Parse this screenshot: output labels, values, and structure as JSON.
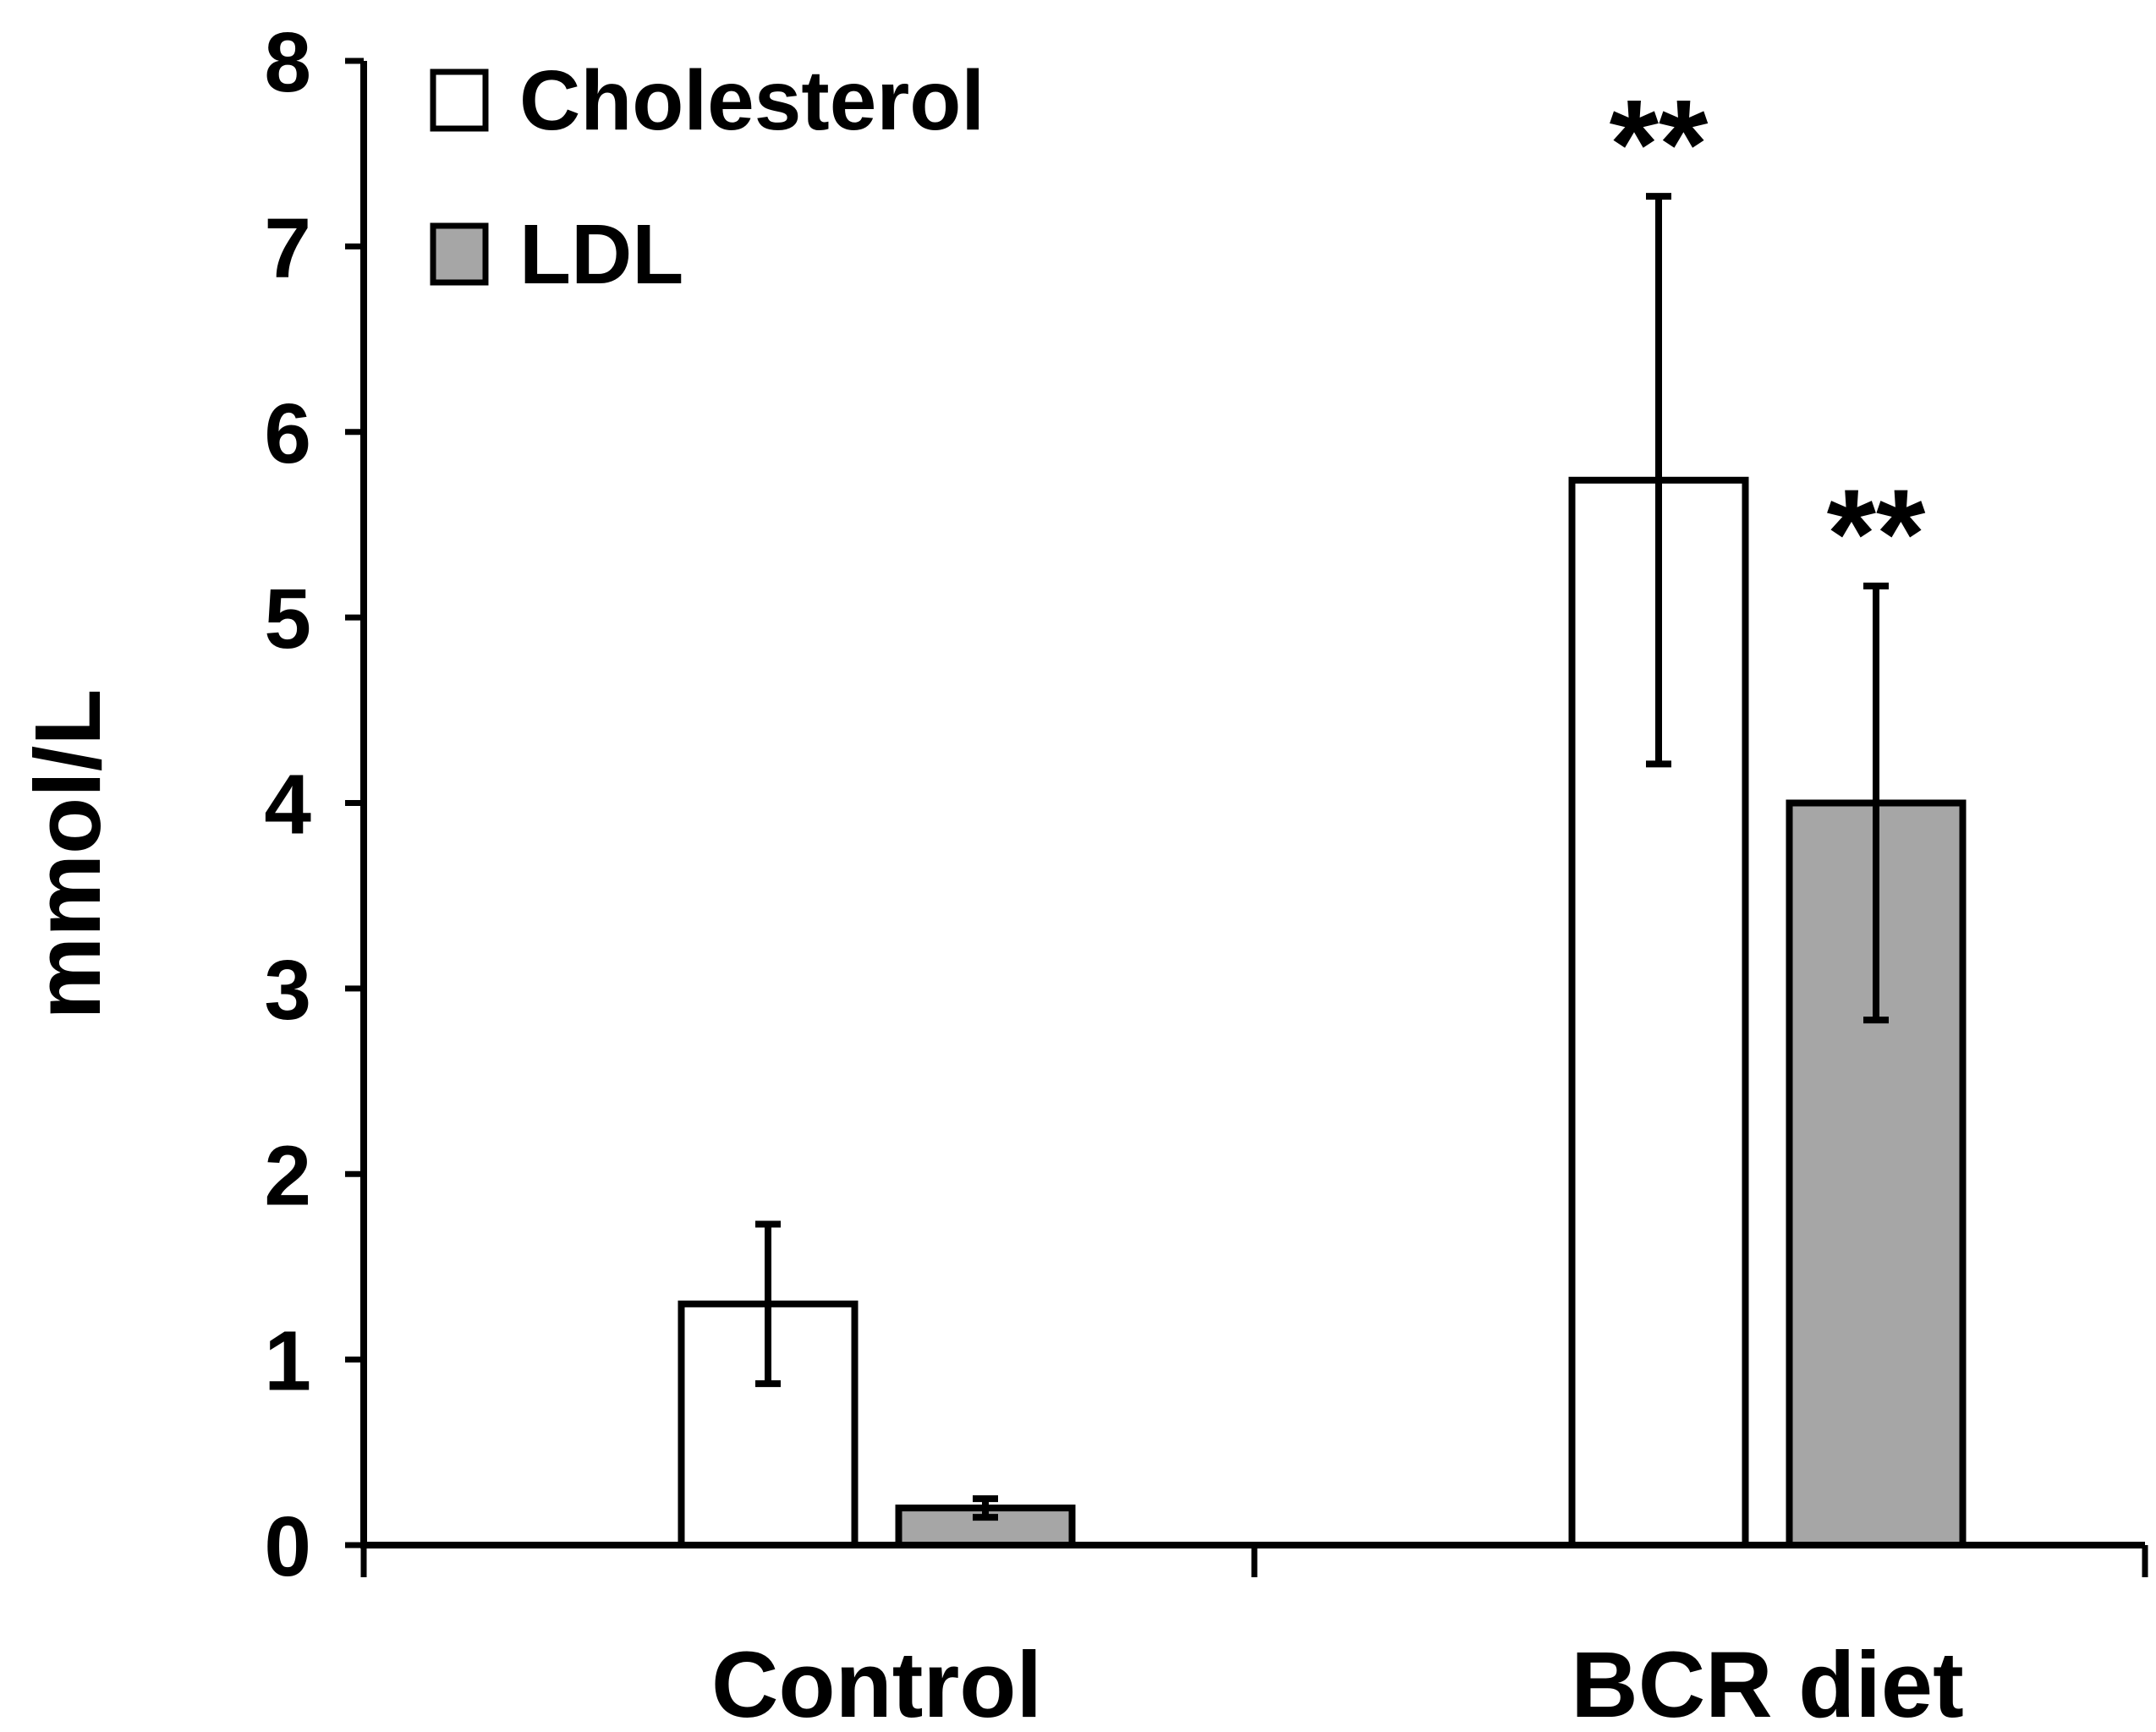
{
  "chart_data": {
    "type": "bar",
    "title": "",
    "xlabel": "",
    "ylabel": "mmol/L",
    "ylim": [
      0,
      8
    ],
    "yticks": [
      "0",
      "1",
      "2",
      "3",
      "4",
      "5",
      "6",
      "7",
      "8"
    ],
    "grid": false,
    "legend_position": "top-left",
    "categories": [
      "Control",
      "BCR diet"
    ],
    "series": [
      {
        "name": "Cholesterol",
        "color": "#ffffff",
        "values": [
          1.3,
          5.74
        ],
        "errors": [
          0.43,
          1.53
        ],
        "annotations": [
          "",
          "**"
        ]
      },
      {
        "name": "LDL",
        "color": "#a6a6a6",
        "values": [
          0.2,
          4.0
        ],
        "errors": [
          0.05,
          1.17
        ],
        "annotations": [
          "",
          "**"
        ]
      }
    ]
  }
}
